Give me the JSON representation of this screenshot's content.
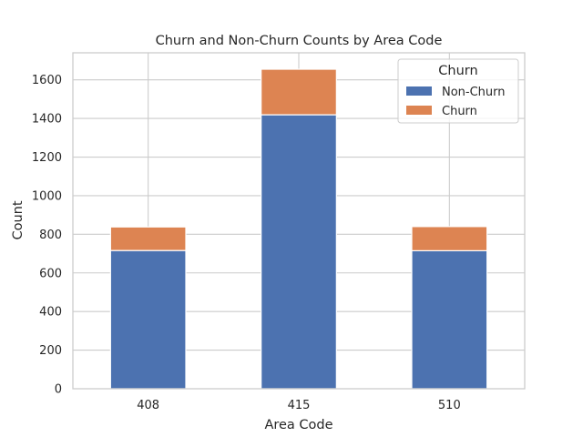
{
  "chart_data": {
    "type": "bar",
    "stacked": true,
    "title": "Churn and Non-Churn Counts by Area Code",
    "xlabel": "Area Code",
    "ylabel": "Count",
    "categories": [
      "408",
      "415",
      "510"
    ],
    "series": [
      {
        "name": "Non-Churn",
        "color": "#4c72b0",
        "values": [
          716,
          1419,
          715
        ]
      },
      {
        "name": "Churn",
        "color": "#dd8452",
        "values": [
          122,
          236,
          125
        ]
      }
    ],
    "ylim": [
      0,
      1740
    ],
    "yticks": [
      0,
      200,
      400,
      600,
      800,
      1000,
      1200,
      1400,
      1600
    ],
    "grid": true,
    "legend": {
      "title": "Churn",
      "placement": "top-right"
    }
  }
}
